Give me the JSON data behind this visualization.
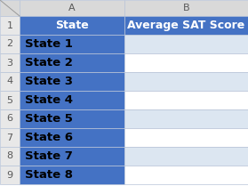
{
  "header_row": [
    "State",
    "Average SAT Score"
  ],
  "data_rows": [
    "State 1",
    "State 2",
    "State 3",
    "State 4",
    "State 5",
    "State 6",
    "State 7",
    "State 8"
  ],
  "row_numbers": [
    1,
    2,
    3,
    4,
    5,
    6,
    7,
    8,
    9
  ],
  "col_labels": [
    "A",
    "B"
  ],
  "col_header_bg": "#D9D9D9",
  "col_header_text": "#595959",
  "data_header_bg": "#4472C4",
  "data_header_text": "#FFFFFF",
  "col_a_bg": "#4472C4",
  "col_a_text": "#000000",
  "col_b_bg_1": "#DCE6F1",
  "col_b_bg_2": "#FFFFFF",
  "row_num_bg": "#E8E8E8",
  "row_num_text": "#595959",
  "corner_bg": "#D9D9D9",
  "grid_color": "#B8C4D8",
  "fig_bg": "#FFFFFF"
}
